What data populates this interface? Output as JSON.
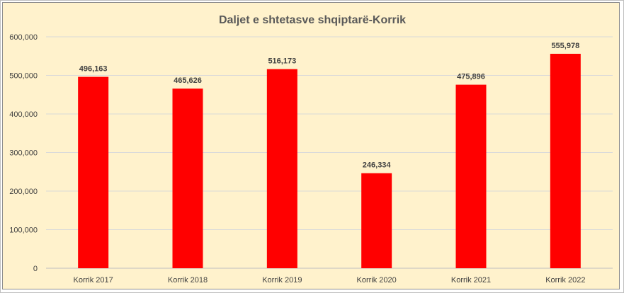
{
  "chart_data": {
    "type": "bar",
    "title": "Daljet e shtetasve shqiptarë-Korrik",
    "categories": [
      "Korrik 2017",
      "Korrik 2018",
      "Korrik 2019",
      "Korrik 2020",
      "Korrik 2021",
      "Korrik 2022"
    ],
    "values": [
      496163,
      465626,
      516173,
      246334,
      475896,
      555978
    ],
    "data_labels": [
      "496,163",
      "465,626",
      "516,173",
      "246,334",
      "475,896",
      "555,978"
    ],
    "yticks": [
      "0",
      "100,000",
      "200,000",
      "300,000",
      "400,000",
      "500,000",
      "600,000"
    ],
    "ylim": [
      0,
      600000
    ],
    "xlabel": "",
    "ylabel": "",
    "grid": true,
    "legend": "none",
    "colors": {
      "bar": "#ff0000",
      "background": "#fff2cc"
    }
  }
}
